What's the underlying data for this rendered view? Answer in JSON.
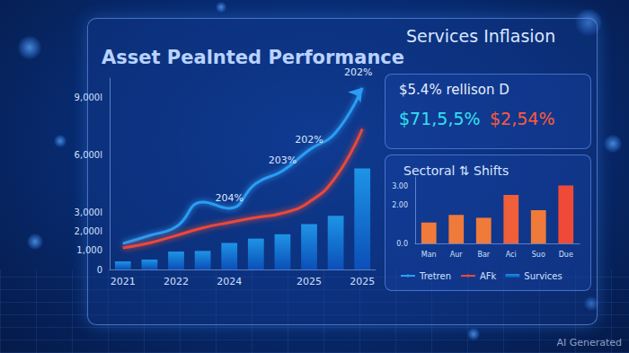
{
  "chart_data": [
    {
      "type": "bar",
      "title": "Asset Pealnted Performance",
      "categories": [
        "2021",
        null,
        "2022",
        null,
        "2024",
        null,
        null,
        "2025",
        null,
        "2025"
      ],
      "series": [
        {
          "name": "Tretren",
          "type": "line",
          "color": "#2a9df4",
          "marker": "arrow",
          "values": [
            1355,
            1774,
            2229,
            3522,
            3196,
            4500,
            5152,
            6245,
            7163,
            9490
          ],
          "point_labels": [
            null,
            null,
            null,
            null,
            "204%",
            null,
            "203%",
            "202%",
            null,
            "202%"
          ]
        },
        {
          "name": "AFk",
          "type": "line",
          "color": "#e8483a",
          "values": [
            1129,
            1387,
            1774,
            2171,
            2457,
            2714,
            2943,
            3522,
            4826,
            7347
          ]
        },
        {
          "name": "Survices",
          "type": "bar",
          "color": "#1e94e6",
          "values": [
            420,
            516,
            935,
            968,
            1387,
            1613,
            1839,
            2371,
            2800,
            5283
          ]
        }
      ],
      "ylim": [
        0,
        10000
      ],
      "yticks": [
        0,
        {
          "value": 1000,
          "label": "1,000"
        },
        {
          "value": 2000,
          "label": "2,000l"
        },
        {
          "value": 3000,
          "label": "3,000l"
        },
        {
          "value": 6000,
          "label": "6,000l"
        },
        {
          "value": 9000,
          "label": "9,000l"
        }
      ],
      "grid": false,
      "legend": "right"
    },
    {
      "type": "bar",
      "title": "Sectoral ⇅ Shifts",
      "categories": [
        "Man",
        "Aur",
        "Bar",
        "Aci",
        "Suo",
        "Due"
      ],
      "values": [
        1.1,
        1.5,
        1.35,
        2.55,
        1.75,
        3.05
      ],
      "colors": [
        "#f07a3a",
        "#f07a3a",
        "#f07a3a",
        "#f05f3a",
        "#f07a3a",
        "#ef4a38"
      ],
      "ylim": [
        0,
        3.5
      ],
      "yticks": [
        {
          "value": 0,
          "label": "0.0"
        },
        {
          "value": 2,
          "label": "2.00"
        },
        {
          "value": 3,
          "label": "3.00"
        }
      ],
      "grid": false
    }
  ],
  "stats_panel": {
    "title": "Services Inflasion",
    "subtitle": "$5.4% rellison D",
    "figures": [
      {
        "text": "$71,5,5%",
        "color": "#33e0f0"
      },
      {
        "text": "$2,54%",
        "color": "#ff5a3c"
      }
    ]
  },
  "watermark": "AI Generated"
}
